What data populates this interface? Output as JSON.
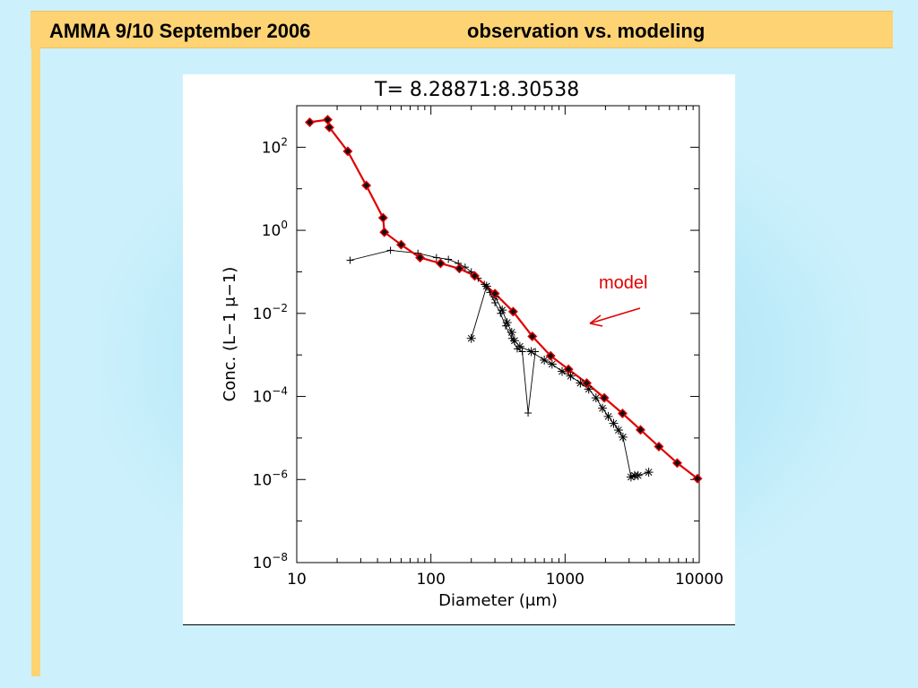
{
  "slide": {
    "title_left": "AMMA 9/10 September 2006",
    "title_right": "observation vs. modeling",
    "accent_color": "#fdd374",
    "background_color": "#cdf1fc"
  },
  "annotation": {
    "label": "model",
    "color": "#e00000"
  },
  "chart_data": {
    "type": "scatter",
    "title": "T=  8.28871:8.30538",
    "xlabel": "Diameter (μm)",
    "ylabel": "Conc. (L−1  μ−1)",
    "xscale": "log",
    "yscale": "log",
    "xlim": [
      10,
      10000
    ],
    "ylim": [
      1e-08,
      1000
    ],
    "x_ticks": [
      10,
      100,
      1000,
      10000
    ],
    "x_tick_labels": [
      "10",
      "100",
      "1000",
      "10000"
    ],
    "y_ticks": [
      1e-08,
      1e-06,
      0.0001,
      0.01,
      1,
      100
    ],
    "y_tick_labels": [
      {
        "base": "10",
        "exp": "−8"
      },
      {
        "base": "10",
        "exp": "−6"
      },
      {
        "base": "10",
        "exp": "−4"
      },
      {
        "base": "10",
        "exp": "−2"
      },
      {
        "base": "10",
        "exp": "0"
      },
      {
        "base": "10",
        "exp": "2"
      }
    ],
    "grid": false,
    "series": [
      {
        "marker": "diamond",
        "color": "#e00000",
        "x": [
          12.5,
          17,
          17.5,
          24,
          33,
          44,
          45,
          60,
          83,
          118,
          163,
          212,
          300,
          410,
          570,
          780,
          1060,
          1450,
          1960,
          2680,
          3650,
          5000,
          6850,
          9700
        ],
        "y": [
          400,
          460,
          300,
          80,
          12,
          2,
          0.9,
          0.45,
          0.22,
          0.16,
          0.12,
          0.08,
          0.03,
          0.011,
          0.0028,
          0.00095,
          0.00045,
          0.00021,
          9.25e-05,
          3.9e-05,
          1.57e-05,
          6.2e-06,
          2.5e-06,
          1.05e-06
        ]
      },
      {
        "marker": "plus",
        "color": "#000000",
        "x": [
          25,
          50,
          80,
          110,
          135,
          160,
          180,
          200,
          225,
          250,
          275,
          300,
          330,
          360,
          400,
          440,
          480,
          530,
          600
        ],
        "y": [
          0.19,
          0.33,
          0.28,
          0.22,
          0.2,
          0.16,
          0.13,
          0.1,
          0.07,
          0.05,
          0.032,
          0.018,
          0.01,
          0.005,
          0.0025,
          0.0014,
          0.0012,
          4e-05,
          0.0012
        ]
      },
      {
        "marker": "star",
        "color": "#000000",
        "x": [
          200,
          260,
          300,
          340,
          370,
          400,
          420,
          460,
          560,
          700,
          800,
          950,
          1100,
          1300,
          1500,
          1700,
          1900,
          2100,
          2300,
          2500,
          2700,
          3100,
          3300,
          3500,
          4200
        ],
        "y": [
          0.0025,
          0.045,
          0.025,
          0.012,
          0.006,
          0.0035,
          0.0022,
          0.0016,
          0.0012,
          0.00075,
          0.0006,
          0.0004,
          0.00031,
          0.00021,
          0.00015,
          9.25e-05,
          5.2e-05,
          3.3e-05,
          2.25e-05,
          1.55e-05,
          1.05e-05,
          1.15e-06,
          1.25e-06,
          1.25e-06,
          1.5e-06
        ]
      }
    ]
  }
}
